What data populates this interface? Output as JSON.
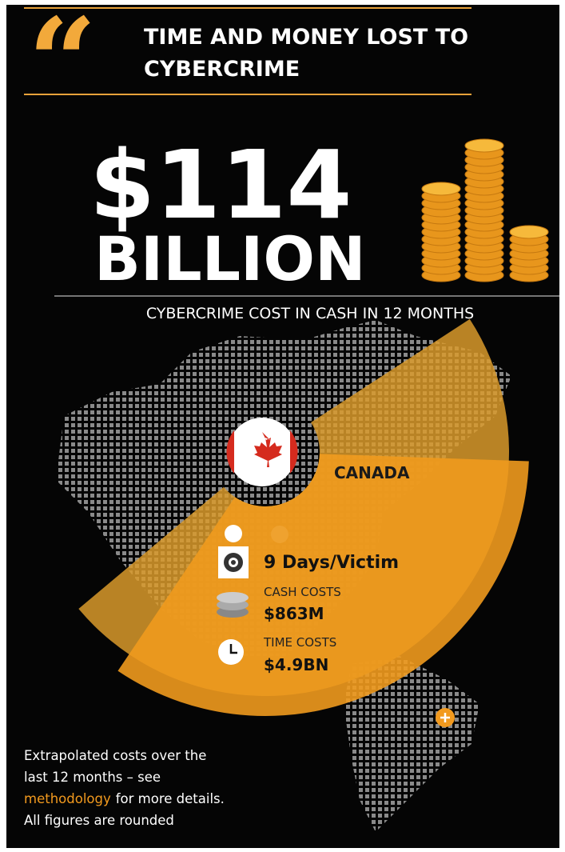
{
  "header": {
    "title_lines": [
      "TIME AND MONEY LOST TO",
      "CYBERCRIME"
    ]
  },
  "headline": {
    "amount": "$114",
    "unit": "BILLION",
    "subtitle": "CYBERCRIME COST IN CASH IN 12 MONTHS"
  },
  "country": {
    "name": "CANADA",
    "days": "9 Days/Victim",
    "cash_label": "CASH COSTS",
    "cash_value": "$863M",
    "time_label": "TIME COSTS",
    "time_value": "$4.9BN"
  },
  "footnote": {
    "lines": [
      "Extrapolated costs over the",
      "last 12 months – see",
      "for more details.",
      "All figures are rounded"
    ],
    "link": "methodology"
  }
}
